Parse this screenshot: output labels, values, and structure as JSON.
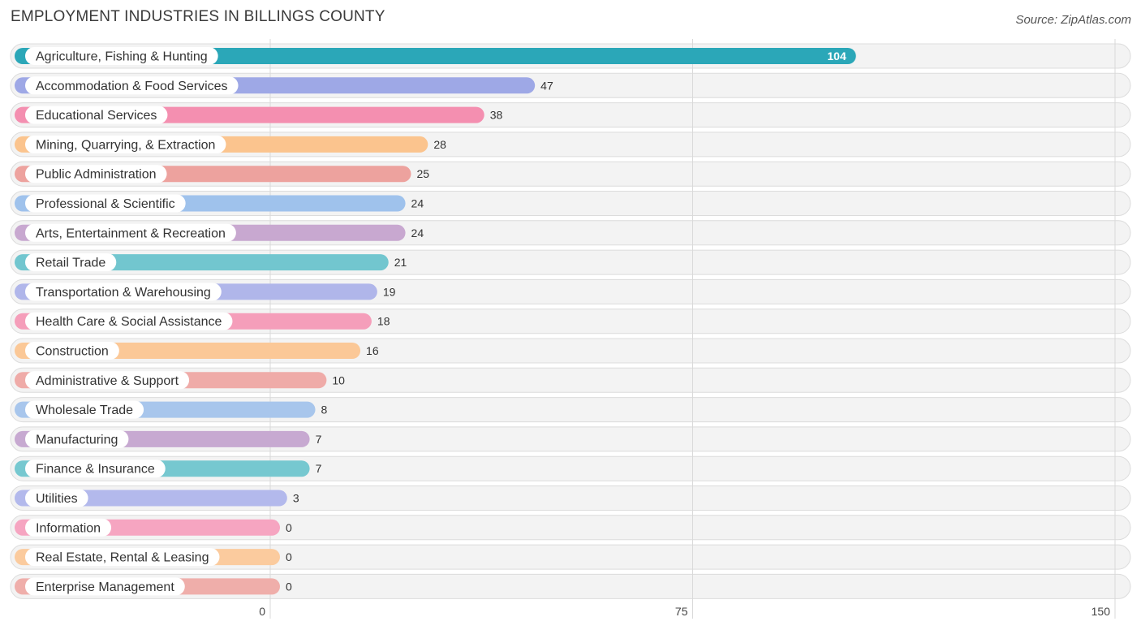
{
  "title": "EMPLOYMENT INDUSTRIES IN BILLINGS COUNTY",
  "source": "Source: ZipAtlas.com",
  "chart_data": {
    "type": "bar",
    "orientation": "horizontal",
    "title": "EMPLOYMENT INDUSTRIES IN BILLINGS COUNTY",
    "xlim": [
      0,
      150
    ],
    "xticks": [
      0,
      75,
      150
    ],
    "xtick_labels": [
      "0",
      "75",
      "150"
    ],
    "grid": true,
    "categories": [
      "Agriculture, Fishing & Hunting",
      "Accommodation & Food Services",
      "Educational Services",
      "Mining, Quarrying, & Extraction",
      "Public Administration",
      "Professional & Scientific",
      "Arts, Entertainment & Recreation",
      "Retail Trade",
      "Transportation & Warehousing",
      "Health Care & Social Assistance",
      "Construction",
      "Administrative & Support",
      "Wholesale Trade",
      "Manufacturing",
      "Finance & Insurance",
      "Utilities",
      "Information",
      "Real Estate, Rental & Leasing",
      "Enterprise Management"
    ],
    "values": [
      104,
      47,
      38,
      28,
      25,
      24,
      24,
      21,
      19,
      18,
      16,
      10,
      8,
      7,
      7,
      3,
      0,
      0,
      0
    ],
    "colors": [
      "#2ba7b8",
      "#9ea8e6",
      "#f48fb0",
      "#fbc48e",
      "#eda29e",
      "#9fc2ec",
      "#c8a8d0",
      "#72c6cf",
      "#b0b6ea",
      "#f59eba",
      "#fbc897",
      "#efaba8",
      "#a8c6ec",
      "#c7a9d1",
      "#76c8d0",
      "#b3b9ec",
      "#f6a5c1",
      "#fbcb9e",
      "#efaeaa"
    ]
  }
}
